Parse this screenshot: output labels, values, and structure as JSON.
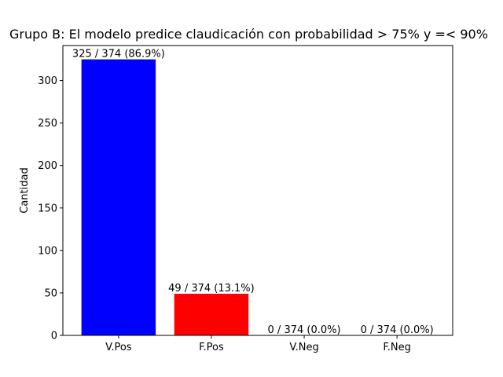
{
  "chart_data": {
    "type": "bar",
    "title": "Grupo B: El modelo predice claudicación con probabilidad > 75% y =< 90%",
    "xlabel": "",
    "ylabel": "Cantidad",
    "categories": [
      "V.Pos",
      "F.Pos",
      "V.Neg",
      "F.Neg"
    ],
    "values": [
      325,
      49,
      0,
      0
    ],
    "bar_labels": [
      "325 / 374 (86.9%)",
      "49 / 374 (13.1%)",
      "0 / 374 (0.0%)",
      "0 / 374 (0.0%)"
    ],
    "bar_colors": [
      "#0000ff",
      "#ff0000",
      "#008000",
      "#ffa500"
    ],
    "ylim": [
      0,
      341.25
    ],
    "yticks": [
      0,
      50,
      100,
      150,
      200,
      250,
      300
    ],
    "grid": false,
    "legend": "none"
  }
}
